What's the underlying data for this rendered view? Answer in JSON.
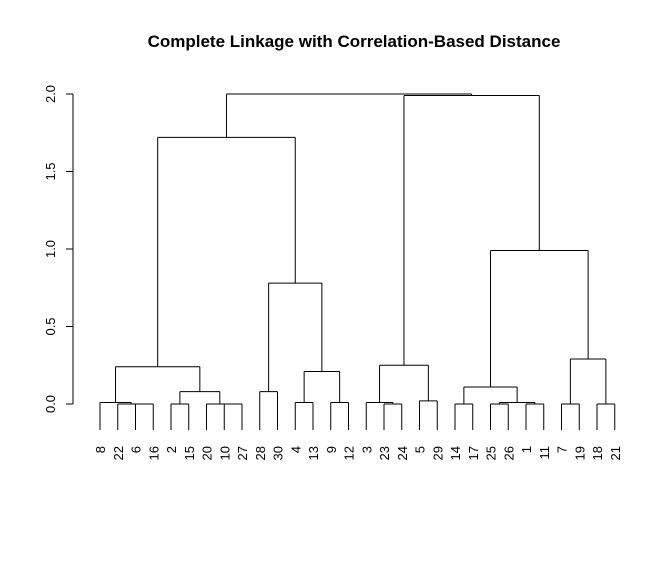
{
  "chart_data": {
    "type": "dendrogram",
    "title": "Complete Linkage with Correlation-Based Distance",
    "ylim": [
      0,
      2.0
    ],
    "yticks": [
      "0.0",
      "0.5",
      "1.0",
      "1.5",
      "2.0"
    ],
    "ytick_values": [
      0,
      0.5,
      1.0,
      1.5,
      2.0
    ],
    "leaves": [
      "8",
      "22",
      "6",
      "16",
      "2",
      "15",
      "20",
      "10",
      "27",
      "28",
      "30",
      "4",
      "13",
      "9",
      "12",
      "3",
      "23",
      "24",
      "5",
      "29",
      "14",
      "17",
      "25",
      "26",
      "1",
      "11",
      "7",
      "19",
      "18",
      "21"
    ],
    "merges": [
      {
        "h": 0.0,
        "a": "8",
        "b": "22"
      },
      {
        "h": 0.0,
        "a": "6",
        "b": "16"
      },
      {
        "h": 0.0,
        "a": "2",
        "b": "15"
      },
      {
        "h": 0.0,
        "a": "10",
        "b": "27"
      },
      {
        "h": 0.0,
        "a": "28",
        "b": "30"
      },
      {
        "h": 0.0,
        "a": "4",
        "b": "13"
      },
      {
        "h": 0.0,
        "a": "9",
        "b": "12"
      },
      {
        "h": 0.0,
        "a": "23",
        "b": "24"
      },
      {
        "h": 0.0,
        "a": "5",
        "b": "29"
      },
      {
        "h": 0.0,
        "a": "14",
        "b": "17"
      },
      {
        "h": 0.0,
        "a": "26",
        "b": "1"
      },
      {
        "h": 0.0,
        "a": "11",
        "b": "7"
      }
    ]
  }
}
